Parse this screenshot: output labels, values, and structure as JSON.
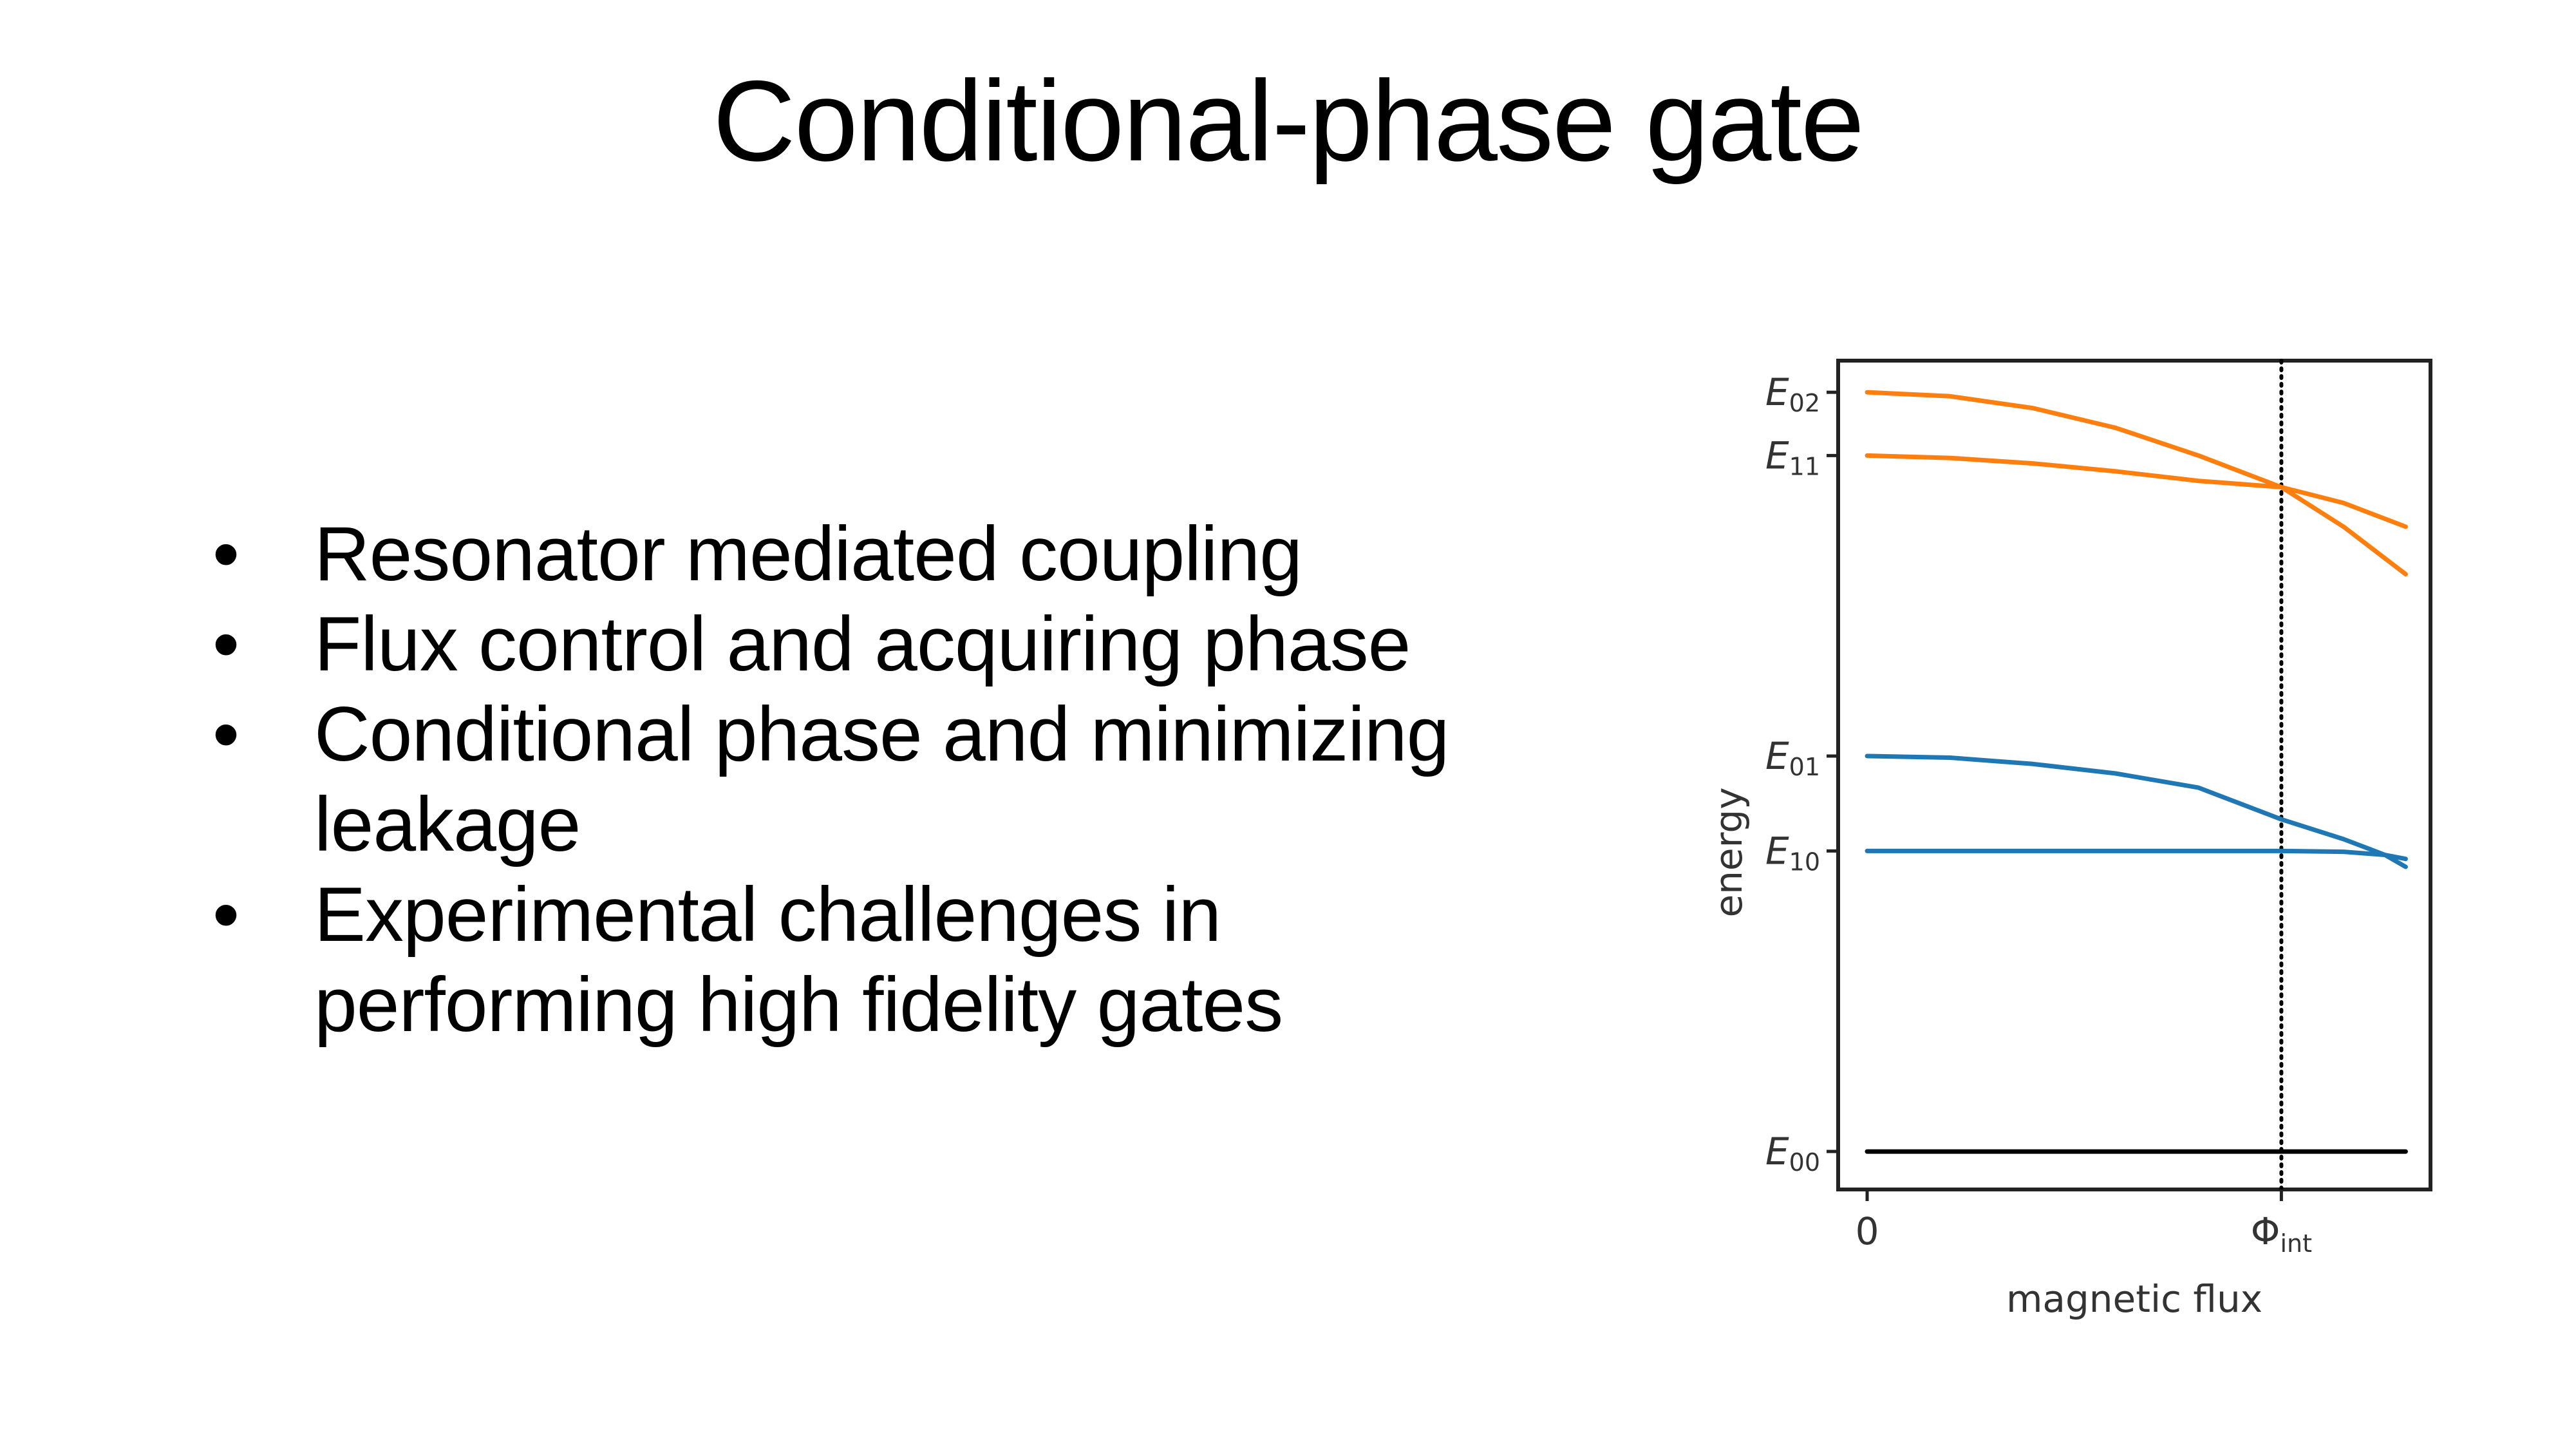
{
  "slide": {
    "title": "Conditional-phase gate",
    "bullets": [
      {
        "marker": "•",
        "text": "Resonator mediated coupling"
      },
      {
        "marker": "•",
        "text": "Flux control and acquiring phase"
      },
      {
        "marker": "•",
        "text": "Conditional phase and minimizing leakage"
      },
      {
        "marker": "•",
        "text": "Experimental challenges in performing high fidelity gates"
      }
    ]
  },
  "chart_data": {
    "type": "line",
    "xlabel": "magnetic flux",
    "ylabel": "energy",
    "xticks": [
      {
        "x": 0,
        "label": "0"
      },
      {
        "x": 1,
        "label": "Φ",
        "sub": "int"
      }
    ],
    "yticks": [
      {
        "y": 0.0,
        "label": "E",
        "sub": "00"
      },
      {
        "y": 0.38,
        "label": "E",
        "sub": "10"
      },
      {
        "y": 0.5,
        "label": "E",
        "sub": "01"
      },
      {
        "y": 0.88,
        "label": "E",
        "sub": "11"
      },
      {
        "y": 0.96,
        "label": "E",
        "sub": "02"
      }
    ],
    "xlim": [
      -0.07,
      1.36
    ],
    "ylim": [
      -0.048,
      1.0
    ],
    "vline": {
      "x": 1,
      "style": "dotted",
      "color": "#000000"
    },
    "grid": false,
    "series": [
      {
        "color": "#ff7f0e",
        "x": [
          0,
          0.2,
          0.4,
          0.6,
          0.8,
          1.0,
          1.15,
          1.3
        ],
        "y": [
          0.96,
          0.955,
          0.94,
          0.915,
          0.88,
          0.84,
          0.79,
          0.73
        ]
      },
      {
        "color": "#ff7f0e",
        "x": [
          0,
          0.2,
          0.4,
          0.6,
          0.8,
          1.0,
          1.15,
          1.3
        ],
        "y": [
          0.88,
          0.877,
          0.87,
          0.86,
          0.848,
          0.84,
          0.82,
          0.79
        ]
      },
      {
        "color": "#1f77b4",
        "x": [
          0,
          0.2,
          0.4,
          0.6,
          0.8,
          1.0,
          1.15,
          1.25,
          1.3
        ],
        "y": [
          0.5,
          0.498,
          0.49,
          0.478,
          0.46,
          0.42,
          0.395,
          0.375,
          0.37
        ]
      },
      {
        "color": "#1f77b4",
        "x": [
          0,
          0.2,
          0.4,
          0.6,
          0.8,
          1.0,
          1.15,
          1.25,
          1.3
        ],
        "y": [
          0.38,
          0.38,
          0.38,
          0.38,
          0.38,
          0.38,
          0.379,
          0.375,
          0.36
        ]
      },
      {
        "color": "#000000",
        "x": [
          0,
          1.3
        ],
        "y": [
          0.0,
          0.0
        ]
      }
    ]
  }
}
